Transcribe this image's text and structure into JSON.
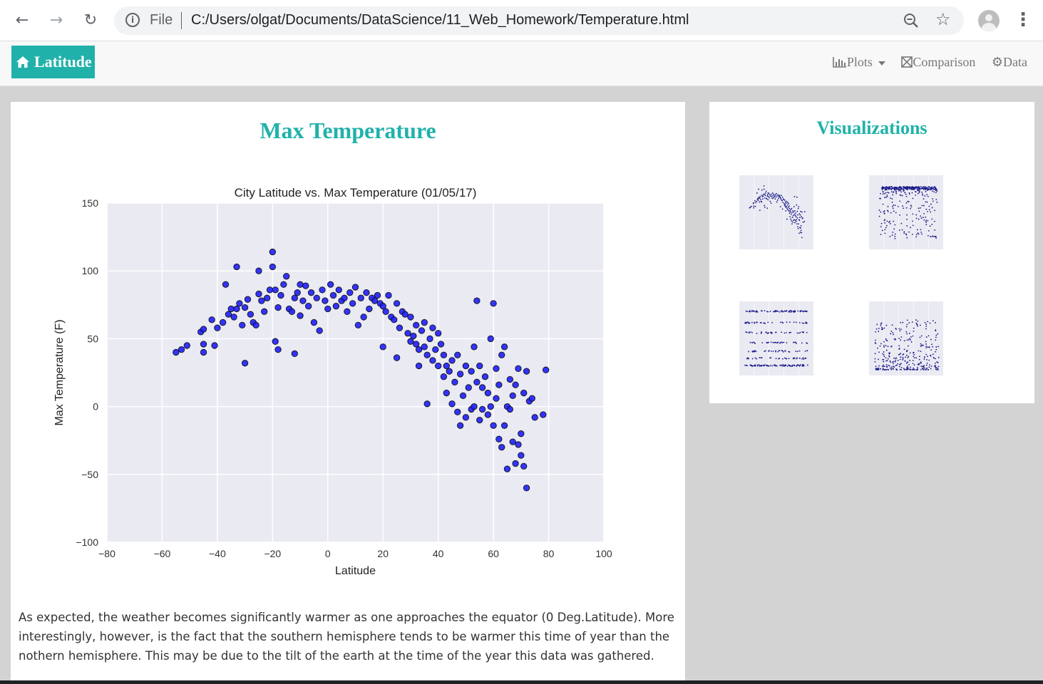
{
  "browser": {
    "file_label": "File",
    "url": "C:/Users/olgat/Documents/DataScience/11_Web_Homework/Temperature.html"
  },
  "navbar": {
    "brand": "Latitude",
    "brand_icon": "home-icon",
    "links": [
      {
        "label": "Plots",
        "icon": "bar-chart-icon",
        "dropdown": true
      },
      {
        "label": "Comparison",
        "icon": "comparison-icon"
      },
      {
        "label": "Data",
        "icon": "gear-icon"
      }
    ]
  },
  "main": {
    "title": "Max Temperature",
    "description": "As expected, the weather becomes significantly warmer as one approaches the equator (0 Deg.Latitude). More interestingly, however, is the fact that the southern hemisphere tends to be warmer this time of year than the nothern hemisphere. This may be due to the tilt of the earth at the time of the year this data was gathered."
  },
  "side": {
    "title": "Visualizations"
  },
  "colors": {
    "accent": "#20b2aa",
    "point_fill": "#1f1fff",
    "plot_bg": "#eaeaf2"
  },
  "chart_data": {
    "type": "scatter",
    "title": "City Latitude vs. Max Temperature (01/05/17)",
    "xlabel": "Latitude",
    "ylabel": "Max Temperature (F)",
    "xlim": [
      -80,
      100
    ],
    "ylim": [
      -100,
      150
    ],
    "xticks": [
      -80,
      -60,
      -40,
      -20,
      0,
      20,
      40,
      60,
      80,
      100
    ],
    "yticks": [
      -100,
      -50,
      0,
      50,
      100,
      150
    ],
    "grid": true,
    "points": [
      [
        -55,
        40
      ],
      [
        -53,
        42
      ],
      [
        -51,
        45
      ],
      [
        -46,
        55
      ],
      [
        -45,
        57
      ],
      [
        -45,
        46
      ],
      [
        -45,
        40
      ],
      [
        -42,
        64
      ],
      [
        -41,
        45
      ],
      [
        -40,
        58
      ],
      [
        -38,
        62
      ],
      [
        -37,
        90
      ],
      [
        -36,
        68
      ],
      [
        -35,
        72
      ],
      [
        -34,
        66
      ],
      [
        -33,
        103
      ],
      [
        -33,
        72
      ],
      [
        -32,
        76
      ],
      [
        -31,
        60
      ],
      [
        -30,
        32
      ],
      [
        -30,
        73
      ],
      [
        -29,
        79
      ],
      [
        -28,
        68
      ],
      [
        -27,
        62
      ],
      [
        -26,
        60
      ],
      [
        -25,
        100
      ],
      [
        -25,
        83
      ],
      [
        -24,
        78
      ],
      [
        -23,
        70
      ],
      [
        -22,
        80
      ],
      [
        -21,
        86
      ],
      [
        -20,
        114
      ],
      [
        -20,
        103
      ],
      [
        -19,
        86
      ],
      [
        -19,
        48
      ],
      [
        -18,
        42
      ],
      [
        -18,
        73
      ],
      [
        -17,
        82
      ],
      [
        -16,
        90
      ],
      [
        -15,
        96
      ],
      [
        -14,
        72
      ],
      [
        -13,
        70
      ],
      [
        -12,
        39
      ],
      [
        -12,
        80
      ],
      [
        -11,
        84
      ],
      [
        -10,
        90
      ],
      [
        -10,
        67
      ],
      [
        -9,
        78
      ],
      [
        -8,
        89
      ],
      [
        -7,
        74
      ],
      [
        -6,
        84
      ],
      [
        -5,
        62
      ],
      [
        -4,
        80
      ],
      [
        -3,
        56
      ],
      [
        -2,
        86
      ],
      [
        -1,
        78
      ],
      [
        0,
        72
      ],
      [
        1,
        90
      ],
      [
        2,
        82
      ],
      [
        3,
        74
      ],
      [
        4,
        86
      ],
      [
        5,
        78
      ],
      [
        6,
        80
      ],
      [
        7,
        70
      ],
      [
        8,
        84
      ],
      [
        9,
        76
      ],
      [
        10,
        88
      ],
      [
        11,
        60
      ],
      [
        12,
        80
      ],
      [
        13,
        66
      ],
      [
        14,
        84
      ],
      [
        15,
        72
      ],
      [
        16,
        80
      ],
      [
        17,
        78
      ],
      [
        18,
        82
      ],
      [
        19,
        76
      ],
      [
        20,
        74
      ],
      [
        20,
        44
      ],
      [
        21,
        70
      ],
      [
        22,
        82
      ],
      [
        23,
        66
      ],
      [
        24,
        64
      ],
      [
        25,
        36
      ],
      [
        25,
        76
      ],
      [
        26,
        58
      ],
      [
        27,
        70
      ],
      [
        28,
        68
      ],
      [
        29,
        54
      ],
      [
        30,
        48
      ],
      [
        30,
        66
      ],
      [
        31,
        52
      ],
      [
        32,
        46
      ],
      [
        32,
        60
      ],
      [
        33,
        42
      ],
      [
        33,
        30
      ],
      [
        34,
        56
      ],
      [
        35,
        44
      ],
      [
        35,
        62
      ],
      [
        36,
        2
      ],
      [
        36,
        38
      ],
      [
        37,
        50
      ],
      [
        38,
        34
      ],
      [
        38,
        58
      ],
      [
        39,
        42
      ],
      [
        40,
        30
      ],
      [
        40,
        54
      ],
      [
        41,
        46
      ],
      [
        42,
        22
      ],
      [
        42,
        38
      ],
      [
        43,
        10
      ],
      [
        43,
        30
      ],
      [
        44,
        26
      ],
      [
        45,
        34
      ],
      [
        45,
        2
      ],
      [
        46,
        18
      ],
      [
        47,
        -4
      ],
      [
        47,
        38
      ],
      [
        48,
        24
      ],
      [
        48,
        -14
      ],
      [
        49,
        8
      ],
      [
        50,
        30
      ],
      [
        50,
        -8
      ],
      [
        51,
        14
      ],
      [
        52,
        26
      ],
      [
        52,
        -2
      ],
      [
        53,
        0
      ],
      [
        53,
        44
      ],
      [
        54,
        78
      ],
      [
        54,
        18
      ],
      [
        55,
        -10
      ],
      [
        55,
        30
      ],
      [
        56,
        -2
      ],
      [
        56,
        14
      ],
      [
        57,
        22
      ],
      [
        58,
        -6
      ],
      [
        58,
        10
      ],
      [
        59,
        0
      ],
      [
        59,
        50
      ],
      [
        60,
        76
      ],
      [
        60,
        -14
      ],
      [
        61,
        6
      ],
      [
        61,
        28
      ],
      [
        62,
        -24
      ],
      [
        62,
        16
      ],
      [
        63,
        -30
      ],
      [
        63,
        38
      ],
      [
        64,
        -14
      ],
      [
        64,
        44
      ],
      [
        65,
        -46
      ],
      [
        65,
        0
      ],
      [
        66,
        -2
      ],
      [
        66,
        20
      ],
      [
        67,
        -26
      ],
      [
        67,
        8
      ],
      [
        68,
        -42
      ],
      [
        68,
        16
      ],
      [
        69,
        -28
      ],
      [
        69,
        28
      ],
      [
        70,
        -36
      ],
      [
        70,
        -20
      ],
      [
        71,
        -44
      ],
      [
        71,
        10
      ],
      [
        72,
        -60
      ],
      [
        72,
        26
      ],
      [
        73,
        4
      ],
      [
        74,
        6
      ],
      [
        75,
        -8
      ],
      [
        78,
        -6
      ],
      [
        79,
        27
      ]
    ]
  }
}
